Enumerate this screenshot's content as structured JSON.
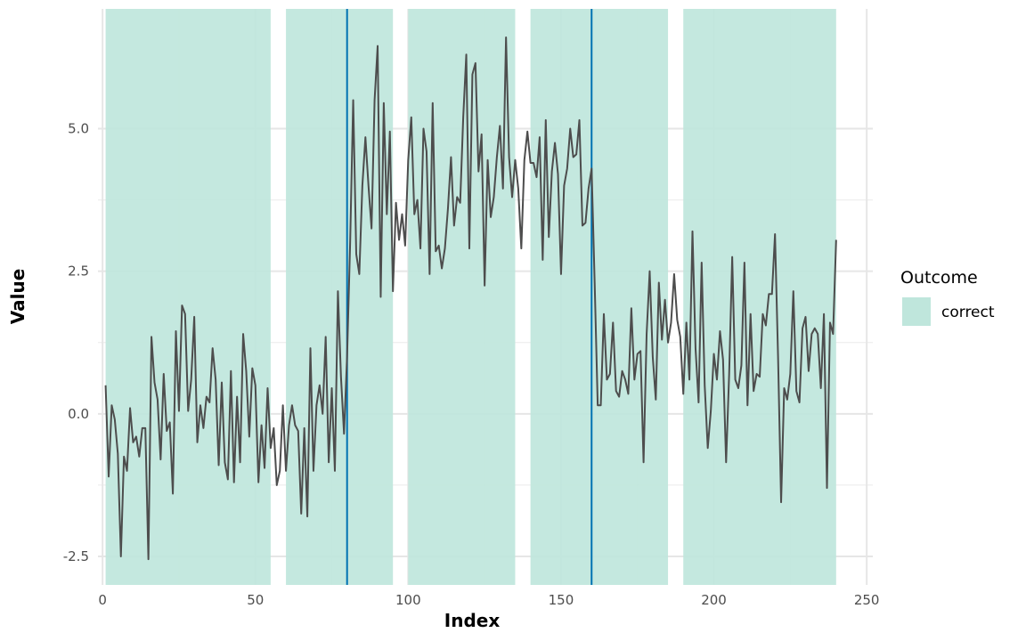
{
  "chart_data": {
    "type": "line",
    "title": "",
    "xlabel": "Index",
    "ylabel": "Value",
    "xlim": [
      -1.5,
      252
    ],
    "ylim": [
      -3.0,
      7.1
    ],
    "x_ticks": [
      0,
      50,
      100,
      150,
      200,
      250
    ],
    "x_tick_labels": [
      "0",
      "50",
      "100",
      "150",
      "200",
      "250"
    ],
    "y_ticks": [
      -2.5,
      0.0,
      2.5,
      5.0
    ],
    "y_tick_labels": [
      "-2.5",
      "0.0",
      "2.5",
      "5.0"
    ],
    "grid": true,
    "line_color": "#4d4d4d",
    "band_color": "#bfe6dc",
    "vline_color": "#0072b2",
    "bands": [
      {
        "start": 1,
        "end": 55,
        "outcome": "correct"
      },
      {
        "start": 60,
        "end": 95,
        "outcome": "correct"
      },
      {
        "start": 100,
        "end": 135,
        "outcome": "correct"
      },
      {
        "start": 140,
        "end": 185,
        "outcome": "correct"
      },
      {
        "start": 190,
        "end": 240,
        "outcome": "correct"
      }
    ],
    "vlines": [
      80,
      160
    ],
    "legend": {
      "title": "Outcome",
      "position": "right",
      "entries": [
        {
          "label": "correct",
          "color": "#bfe6dc"
        }
      ]
    },
    "series": [
      {
        "values": [
          0.5,
          -1.1,
          0.15,
          -0.1,
          -0.7,
          -2.5,
          -0.75,
          -1.0,
          0.1,
          -0.5,
          -0.4,
          -0.75,
          -0.25,
          -0.25,
          -2.55,
          1.35,
          0.55,
          0.25,
          -0.8,
          0.7,
          -0.3,
          -0.15,
          -1.4,
          1.45,
          0.05,
          1.9,
          1.75,
          0.05,
          0.6,
          1.7,
          -0.5,
          0.15,
          -0.25,
          0.3,
          0.2,
          1.15,
          0.6,
          -0.9,
          0.55,
          -0.85,
          -1.15,
          0.75,
          -1.2,
          0.3,
          -0.85,
          1.4,
          0.75,
          -0.4,
          0.8,
          0.5,
          -1.2,
          -0.2,
          -0.95,
          0.45,
          -0.6,
          -0.25,
          -1.25,
          -1.0,
          0.15,
          -1.0,
          -0.2,
          0.15,
          -0.2,
          -0.3,
          -1.75,
          -0.25,
          -1.8,
          1.15,
          -1.0,
          0.15,
          0.5,
          0.0,
          1.35,
          -0.85,
          0.45,
          -1.0,
          2.15,
          0.65,
          -0.35,
          1.0,
          3.0,
          5.5,
          2.8,
          2.45,
          4.0,
          4.85,
          4.0,
          3.25,
          5.5,
          6.45,
          2.05,
          5.45,
          3.5,
          4.95,
          2.15,
          3.7,
          3.05,
          3.5,
          2.95,
          4.45,
          5.2,
          3.5,
          3.75,
          2.9,
          5.0,
          4.6,
          2.45,
          5.45,
          2.85,
          2.95,
          2.55,
          2.9,
          3.6,
          4.5,
          3.3,
          3.8,
          3.7,
          5.2,
          6.3,
          2.9,
          5.95,
          6.15,
          4.25,
          4.9,
          2.25,
          4.45,
          3.45,
          3.8,
          4.5,
          5.05,
          3.95,
          6.6,
          4.5,
          3.8,
          4.45,
          3.95,
          2.9,
          4.45,
          4.95,
          4.4,
          4.4,
          4.15,
          4.85,
          2.7,
          5.15,
          3.1,
          4.25,
          4.75,
          4.2,
          2.45,
          4.0,
          4.3,
          5.0,
          4.5,
          4.55,
          5.15,
          3.3,
          3.35,
          3.95,
          4.3,
          2.3,
          0.15,
          0.15,
          1.75,
          0.6,
          0.7,
          1.6,
          0.4,
          0.3,
          0.75,
          0.6,
          0.35,
          1.85,
          0.6,
          1.05,
          1.1,
          -0.85,
          1.4,
          2.5,
          1.0,
          0.25,
          2.3,
          1.3,
          2.0,
          1.25,
          1.6,
          2.45,
          1.65,
          1.35,
          0.35,
          1.6,
          0.6,
          3.2,
          1.15,
          0.2,
          2.65,
          0.5,
          -0.6,
          0.05,
          1.05,
          0.6,
          1.45,
          0.95,
          -0.85,
          0.7,
          2.75,
          0.6,
          0.45,
          0.85,
          2.65,
          0.15,
          1.75,
          0.4,
          0.7,
          0.65,
          1.75,
          1.55,
          2.1,
          2.1,
          3.15,
          1.0,
          -1.55,
          0.45,
          0.25,
          0.7,
          2.15,
          0.4,
          0.2,
          1.5,
          1.7,
          0.75,
          1.4,
          1.5,
          1.4,
          0.45,
          1.75,
          -1.3,
          1.6,
          1.4,
          3.05
        ]
      }
    ]
  }
}
